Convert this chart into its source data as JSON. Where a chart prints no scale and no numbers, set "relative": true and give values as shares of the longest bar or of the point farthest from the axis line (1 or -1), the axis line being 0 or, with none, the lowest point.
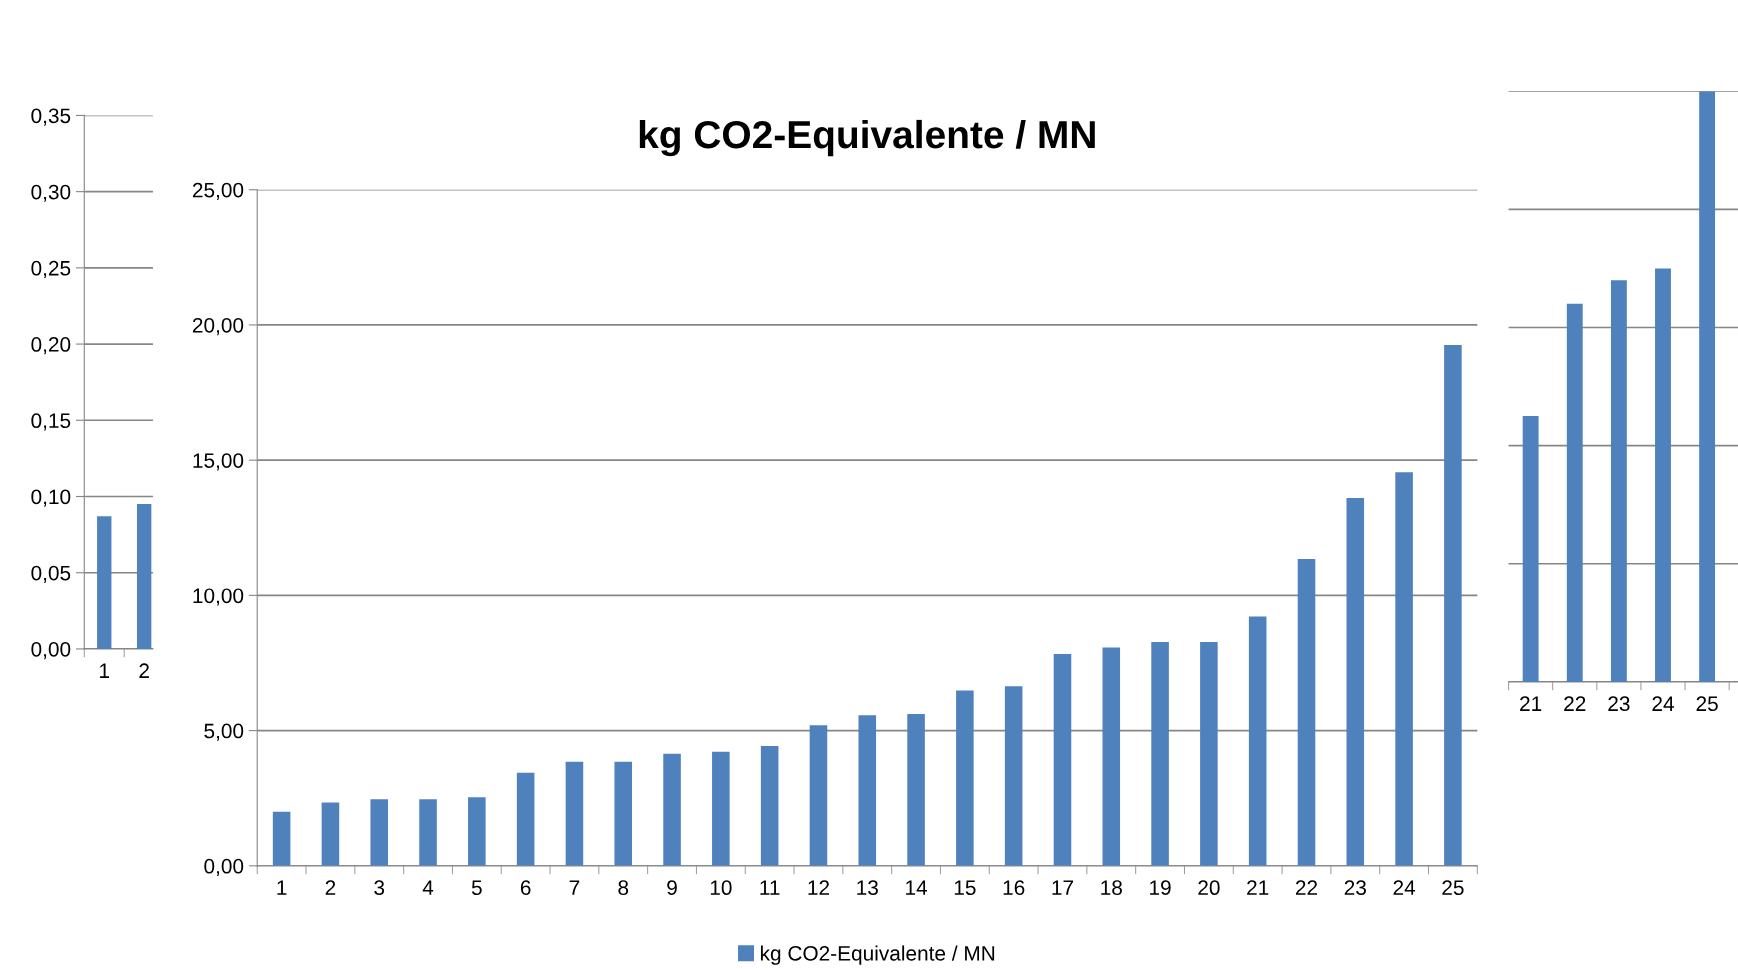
{
  "chart_data": [
    {
      "type": "bar",
      "categories": [
        "1",
        "2"
      ],
      "series": [
        {
          "color": "#4f81bd",
          "values": [
            0.087,
            0.095
          ]
        }
      ],
      "ylim": [
        0,
        0.35
      ],
      "yticks": [
        {
          "value": 0,
          "label": "0,00"
        },
        {
          "value": 0.05,
          "label": "0,05"
        },
        {
          "value": 0.1,
          "label": "0,10"
        },
        {
          "value": 0.15,
          "label": "0,15"
        },
        {
          "value": 0.2,
          "label": "0,20"
        },
        {
          "value": 0.25,
          "label": "0,25"
        },
        {
          "value": 0.3,
          "label": "0,30"
        },
        {
          "value": 0.35,
          "label": "0,35"
        }
      ],
      "grid": "y"
    },
    {
      "type": "bar",
      "title": "kg CO2-Equivalente / MN",
      "categories": [
        "1",
        "2",
        "3",
        "4",
        "5",
        "6",
        "7",
        "8",
        "9",
        "10",
        "11",
        "12",
        "13",
        "14",
        "15",
        "16",
        "17",
        "18",
        "19",
        "20",
        "21",
        "22",
        "23",
        "24",
        "25"
      ],
      "series": [
        {
          "name": "kg CO2-Equivalente / MN",
          "color": "#4f81bd",
          "values": [
            2.0,
            2.34,
            2.46,
            2.46,
            2.54,
            3.44,
            3.85,
            3.85,
            4.14,
            4.22,
            4.43,
            5.2,
            5.57,
            5.61,
            6.48,
            6.64,
            7.83,
            8.07,
            8.28,
            8.28,
            9.22,
            11.35,
            13.6,
            14.55,
            19.26
          ]
        }
      ],
      "ylim": [
        0,
        25
      ],
      "yticks": [
        {
          "value": 0,
          "label": "0,00"
        },
        {
          "value": 5,
          "label": "5,00"
        },
        {
          "value": 10,
          "label": "10,00"
        },
        {
          "value": 15,
          "label": "15,00"
        },
        {
          "value": 20,
          "label": "20,00"
        },
        {
          "value": 25,
          "label": "25,00"
        }
      ],
      "grid": "y",
      "legend": "bottom"
    },
    {
      "type": "bar",
      "relative": true,
      "categories": [
        "21",
        "22",
        "23",
        "24",
        "25"
      ],
      "series": [
        {
          "color": "#4f81bd",
          "values": [
            0.45,
            0.64,
            0.68,
            0.7,
            1.0
          ]
        }
      ],
      "grid": "y"
    }
  ]
}
